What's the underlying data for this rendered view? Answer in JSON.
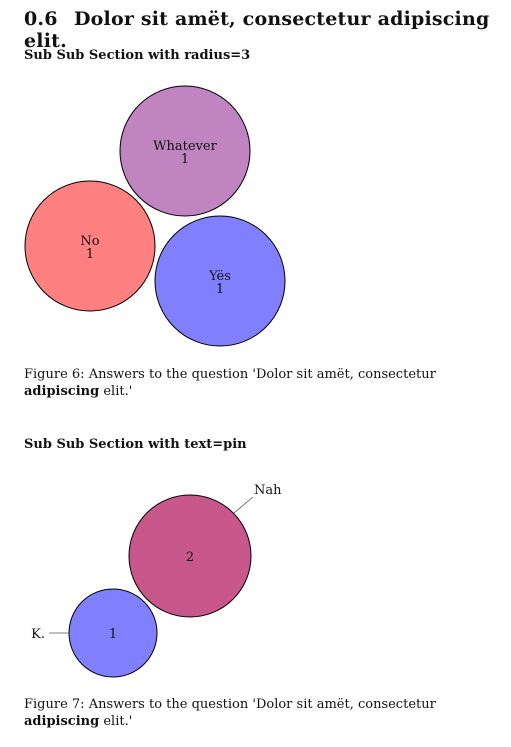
{
  "section": {
    "number": "0.6",
    "title": "Dolor sit amët, consectetur adipiscing elit."
  },
  "sub1": {
    "title": "Sub Sub Section with radius=3"
  },
  "figure6": {
    "caption_prefix": "Figure 6:",
    "caption_text": "Answers to the question 'Dolor sit amët, consectetur",
    "caption_bold": "adipiscing",
    "caption_end": "elit.'",
    "bubbles": [
      {
        "label": "Whatever",
        "value": "1",
        "color": "#c084c0"
      },
      {
        "label": "No",
        "value": "1",
        "color": "#ff8080"
      },
      {
        "label": "Yës",
        "value": "1",
        "color": "#8080ff"
      }
    ]
  },
  "sub2": {
    "title": "Sub Sub Section with text=pin"
  },
  "figure7": {
    "caption_prefix": "Figure 7:",
    "caption_text": "Answers to the question 'Dolor sit amët, consectetur",
    "caption_bold": "adipiscing",
    "caption_end": "elit.'",
    "bubbles": [
      {
        "label": "Nah",
        "value": "2",
        "color": "#c8588c"
      },
      {
        "label": "K.",
        "value": "1",
        "color": "#8080ff"
      }
    ]
  }
}
